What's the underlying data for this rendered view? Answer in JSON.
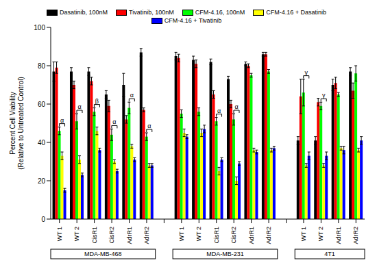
{
  "chart_data": {
    "type": "bar",
    "y_label": "Percent Cell Viability\n(Relative to Untreated Control)",
    "categories": [
      "WT 1",
      "WT 2",
      "CisR1",
      "CisR2",
      "AdrR1",
      "AdrR2",
      null,
      "WT 1",
      "WT 2",
      "CisR1",
      "CisR2",
      "AdrR1",
      "AdrR2",
      null,
      "WT 1",
      "WT 2",
      "AdrR1",
      "AdrR2"
    ],
    "groups": [
      "MDA-MB-468",
      "MDA-MB-468",
      "MDA-MB-468",
      "MDA-MB-468",
      "MDA-MB-468",
      "MDA-MB-468",
      null,
      "MDA-MB-231",
      "MDA-MB-231",
      "MDA-MB-231",
      "MDA-MB-231",
      "MDA-MB-231",
      "MDA-MB-231",
      null,
      "4T1",
      "4T1",
      "4T1",
      "4T1"
    ],
    "series": [
      {
        "name": "Dasatinib, 100nM",
        "color": "#000000",
        "values": [
          77,
          77,
          77,
          65,
          70,
          87,
          null,
          85,
          83,
          82,
          73,
          81,
          86,
          null,
          41,
          41,
          70,
          77
        ],
        "errors": [
          5,
          2,
          2,
          2,
          6,
          2,
          null,
          2,
          2,
          1.5,
          1.5,
          1,
          1,
          null,
          2,
          2,
          3,
          2
        ]
      },
      {
        "name": "Tivatinib, 100nM",
        "color": "#ff0000",
        "values": [
          79,
          70,
          72,
          59,
          52,
          57,
          null,
          84,
          81,
          65,
          60,
          80,
          86,
          null,
          64,
          61,
          71,
          67
        ],
        "errors": [
          3,
          2,
          2,
          3,
          2,
          1,
          null,
          2,
          2,
          2,
          2,
          1,
          1,
          null,
          9,
          2,
          3,
          4
        ]
      },
      {
        "name": "CFM-4.16, 100nM",
        "color": "#00ff00",
        "values": [
          46,
          51,
          56,
          44,
          58,
          43,
          null,
          55,
          56,
          51,
          52,
          75,
          77,
          null,
          66,
          59,
          65,
          76
        ],
        "errors": [
          2,
          4,
          2,
          3,
          3,
          2,
          null,
          2,
          2,
          2,
          3,
          1,
          1,
          null,
          7,
          2,
          1,
          4
        ]
      },
      {
        "name": "CFM-4.16 + Dasatinib",
        "color": "#ffff00",
        "values": [
          33,
          31,
          46,
          30,
          38,
          28,
          null,
          45,
          45,
          25,
          20,
          36,
          36,
          null,
          28,
          28,
          37,
          36
        ],
        "errors": [
          2,
          2,
          2,
          1,
          1,
          1,
          null,
          2,
          2,
          2,
          2,
          1,
          1,
          null,
          1,
          1,
          1,
          1
        ]
      },
      {
        "name": "CFM-4.16 + Tivatinib",
        "color": "#0000ff",
        "values": [
          15,
          23,
          36,
          25,
          31,
          28,
          null,
          43,
          47,
          31,
          29,
          35,
          37,
          null,
          33,
          33,
          36,
          41
        ],
        "errors": [
          1,
          1,
          1,
          1,
          1,
          1,
          null,
          1,
          2,
          1,
          1,
          1,
          1,
          null,
          2,
          2,
          2,
          2
        ]
      }
    ],
    "annotations": [
      {
        "at": 0,
        "label": "α"
      },
      {
        "at": 1,
        "label": "α"
      },
      {
        "at": 2,
        "label": "β"
      },
      {
        "at": 3,
        "label": "α"
      },
      {
        "at": 4,
        "label": "α"
      },
      {
        "at": 5,
        "label": "α"
      },
      {
        "at": 9,
        "label": "α"
      },
      {
        "at": 10,
        "label": "α"
      },
      {
        "at": 14,
        "label": "γ"
      },
      {
        "at": 15,
        "label": "γ"
      }
    ],
    "ylim": [
      0,
      100
    ],
    "yticks": [
      0,
      20,
      40,
      60,
      80,
      100
    ],
    "grid": false,
    "legend": "top"
  }
}
